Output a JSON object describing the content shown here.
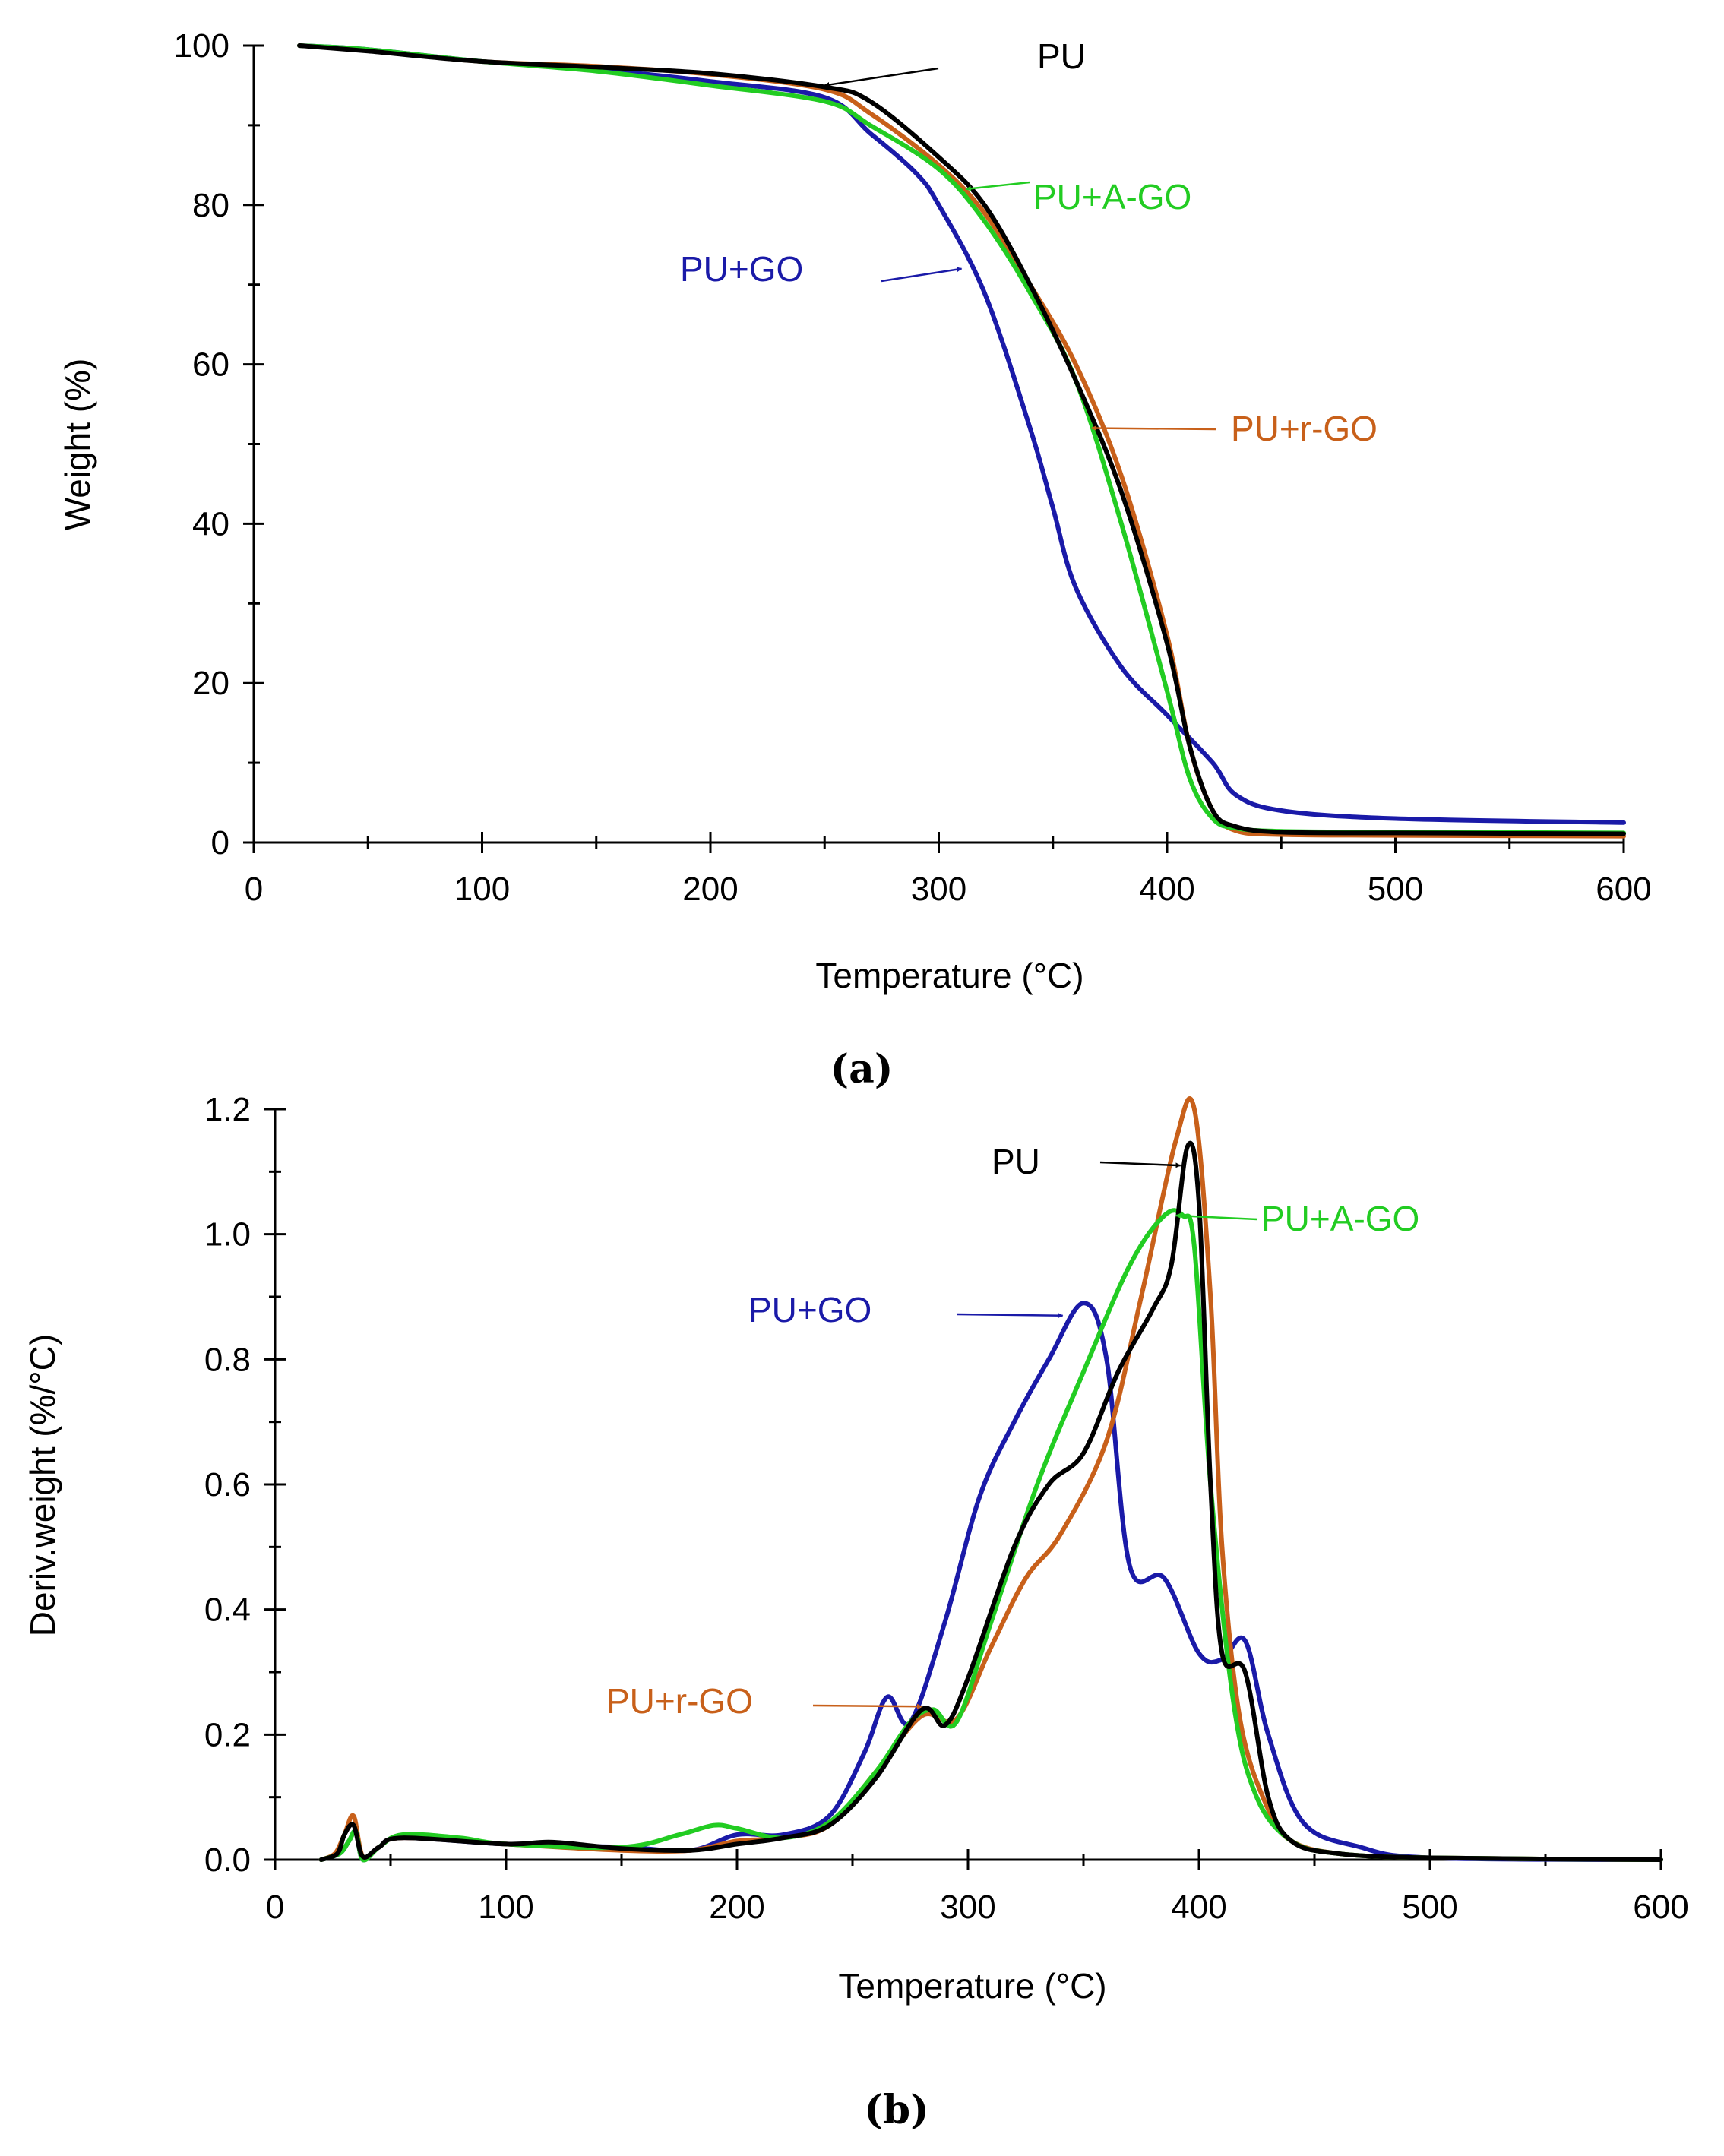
{
  "colors": {
    "PU": "#000000",
    "PU+GO": "#1a1aa8",
    "PU+A-GO": "#22cc22",
    "PU+r-GO": "#c8601a"
  },
  "chart_data": [
    {
      "id": "a",
      "type": "line",
      "panel_label": "(a)",
      "title": "",
      "xlabel": "Temperature (°C)",
      "ylabel": "Weight (%)",
      "xlim": [
        0,
        600
      ],
      "ylim": [
        0,
        100
      ],
      "x_ticks": [
        "0",
        "100",
        "200",
        "300",
        "400",
        "500",
        "600"
      ],
      "y_ticks": [
        "0",
        "20",
        "40",
        "60",
        "80",
        "100"
      ],
      "grid": false,
      "series": [
        {
          "name": "PU",
          "color_key": "PU",
          "points": [
            [
              20,
              100
            ],
            [
              50,
              99.3
            ],
            [
              100,
              98
            ],
            [
              150,
              97.3
            ],
            [
              200,
              96.5
            ],
            [
              250,
              94.8
            ],
            [
              270,
              93
            ],
            [
              300,
              86
            ],
            [
              320,
              80
            ],
            [
              340,
              70
            ],
            [
              360,
              58
            ],
            [
              380,
              44
            ],
            [
              400,
              25
            ],
            [
              410,
              12
            ],
            [
              420,
              4
            ],
            [
              430,
              2
            ],
            [
              450,
              1.3
            ],
            [
              500,
              1.2
            ],
            [
              600,
              1.1
            ]
          ]
        },
        {
          "name": "PU+GO",
          "color_key": "PU+GO",
          "points": [
            [
              20,
              100
            ],
            [
              50,
              99.5
            ],
            [
              100,
              98
            ],
            [
              150,
              97
            ],
            [
              200,
              95.5
            ],
            [
              250,
              93.5
            ],
            [
              270,
              89
            ],
            [
              290,
              84
            ],
            [
              300,
              80
            ],
            [
              320,
              69
            ],
            [
              340,
              52
            ],
            [
              350,
              42
            ],
            [
              360,
              32
            ],
            [
              380,
              22
            ],
            [
              400,
              16
            ],
            [
              420,
              10
            ],
            [
              430,
              6
            ],
            [
              450,
              4
            ],
            [
              500,
              3
            ],
            [
              600,
              2.5
            ]
          ]
        },
        {
          "name": "PU+A-GO",
          "color_key": "PU+A-GO",
          "points": [
            [
              20,
              100
            ],
            [
              50,
              99.5
            ],
            [
              100,
              98
            ],
            [
              150,
              96.8
            ],
            [
              200,
              95
            ],
            [
              250,
              93
            ],
            [
              270,
              90
            ],
            [
              300,
              84.5
            ],
            [
              320,
              78
            ],
            [
              340,
              69
            ],
            [
              360,
              58
            ],
            [
              380,
              40
            ],
            [
              400,
              19
            ],
            [
              410,
              8
            ],
            [
              420,
              3
            ],
            [
              430,
              1.8
            ],
            [
              450,
              1.4
            ],
            [
              500,
              1.3
            ],
            [
              600,
              1.2
            ]
          ]
        },
        {
          "name": "PU+r-GO",
          "color_key": "PU+r-GO",
          "points": [
            [
              20,
              100
            ],
            [
              50,
              99.4
            ],
            [
              100,
              98
            ],
            [
              150,
              97.4
            ],
            [
              200,
              96.4
            ],
            [
              250,
              94.5
            ],
            [
              270,
              91.5
            ],
            [
              300,
              85
            ],
            [
              320,
              79
            ],
            [
              340,
              70
            ],
            [
              360,
              60
            ],
            [
              380,
              46
            ],
            [
              400,
              26
            ],
            [
              410,
              12
            ],
            [
              420,
              4
            ],
            [
              430,
              1.5
            ],
            [
              450,
              1
            ],
            [
              500,
              0.9
            ],
            [
              600,
              0.8
            ]
          ]
        }
      ],
      "annotations": [
        {
          "text": "PU",
          "color_key": "PU",
          "arrow_to": [
            250,
            95
          ]
        },
        {
          "text": "PU+A-GO",
          "color_key": "PU+A-GO",
          "arrow_to": [
            312,
            82
          ]
        },
        {
          "text": "PU+GO",
          "color_key": "PU+GO",
          "arrow_to": [
            310,
            72
          ]
        },
        {
          "text": "PU+r-GO",
          "color_key": "PU+r-GO",
          "arrow_to": [
            367,
            52
          ]
        }
      ]
    },
    {
      "id": "b",
      "type": "line",
      "panel_label": "(b)",
      "title": "",
      "xlabel": "Temperature (°C)",
      "ylabel": "Deriv.weight (%/°C)",
      "xlim": [
        0,
        600
      ],
      "ylim": [
        0,
        1.2
      ],
      "x_ticks": [
        "0",
        "100",
        "200",
        "300",
        "400",
        "500",
        "600"
      ],
      "y_ticks": [
        "0.0",
        "0.2",
        "0.4",
        "0.6",
        "0.8",
        "1.0",
        "1.2"
      ],
      "grid": false,
      "series": [
        {
          "name": "PU",
          "color_key": "PU",
          "points": [
            [
              20,
              0
            ],
            [
              27,
              0.01
            ],
            [
              30,
              0.04
            ],
            [
              34,
              0.055
            ],
            [
              38,
              0.005
            ],
            [
              45,
              0.02
            ],
            [
              55,
              0.035
            ],
            [
              100,
              0.025
            ],
            [
              120,
              0.028
            ],
            [
              150,
              0.018
            ],
            [
              180,
              0.015
            ],
            [
              200,
              0.025
            ],
            [
              220,
              0.035
            ],
            [
              240,
              0.055
            ],
            [
              260,
              0.13
            ],
            [
              280,
              0.24
            ],
            [
              290,
              0.215
            ],
            [
              300,
              0.29
            ],
            [
              320,
              0.5
            ],
            [
              335,
              0.6
            ],
            [
              350,
              0.65
            ],
            [
              365,
              0.78
            ],
            [
              380,
              0.88
            ],
            [
              388,
              0.95
            ],
            [
              395,
              1.14
            ],
            [
              400,
              1.05
            ],
            [
              405,
              0.6
            ],
            [
              410,
              0.33
            ],
            [
              420,
              0.3
            ],
            [
              430,
              0.1
            ],
            [
              440,
              0.03
            ],
            [
              460,
              0.01
            ],
            [
              500,
              0.003
            ],
            [
              600,
              0
            ]
          ]
        },
        {
          "name": "PU+GO",
          "color_key": "PU+GO",
          "points": [
            [
              20,
              0
            ],
            [
              28,
              0.01
            ],
            [
              32,
              0.03
            ],
            [
              35,
              0.045
            ],
            [
              38,
              0
            ],
            [
              45,
              0.02
            ],
            [
              55,
              0.035
            ],
            [
              100,
              0.025
            ],
            [
              150,
              0.02
            ],
            [
              180,
              0.015
            ],
            [
              200,
              0.04
            ],
            [
              220,
              0.04
            ],
            [
              240,
              0.07
            ],
            [
              255,
              0.17
            ],
            [
              265,
              0.26
            ],
            [
              275,
              0.22
            ],
            [
              290,
              0.38
            ],
            [
              305,
              0.58
            ],
            [
              320,
              0.7
            ],
            [
              335,
              0.8
            ],
            [
              350,
              0.89
            ],
            [
              360,
              0.8
            ],
            [
              370,
              0.47
            ],
            [
              385,
              0.45
            ],
            [
              400,
              0.33
            ],
            [
              410,
              0.32
            ],
            [
              420,
              0.35
            ],
            [
              430,
              0.2
            ],
            [
              445,
              0.06
            ],
            [
              470,
              0.02
            ],
            [
              500,
              0.003
            ],
            [
              600,
              0
            ]
          ]
        },
        {
          "name": "PU+A-GO",
          "color_key": "PU+A-GO",
          "points": [
            [
              20,
              0
            ],
            [
              28,
              0.01
            ],
            [
              32,
              0.03
            ],
            [
              35,
              0.045
            ],
            [
              38,
              0
            ],
            [
              45,
              0.02
            ],
            [
              55,
              0.04
            ],
            [
              80,
              0.035
            ],
            [
              100,
              0.025
            ],
            [
              150,
              0.02
            ],
            [
              175,
              0.04
            ],
            [
              190,
              0.055
            ],
            [
              200,
              0.05
            ],
            [
              220,
              0.035
            ],
            [
              240,
              0.06
            ],
            [
              260,
              0.14
            ],
            [
              275,
              0.22
            ],
            [
              285,
              0.24
            ],
            [
              295,
              0.22
            ],
            [
              310,
              0.38
            ],
            [
              330,
              0.6
            ],
            [
              350,
              0.78
            ],
            [
              370,
              0.95
            ],
            [
              385,
              1.03
            ],
            [
              393,
              1.03
            ],
            [
              398,
              0.98
            ],
            [
              405,
              0.6
            ],
            [
              415,
              0.25
            ],
            [
              425,
              0.1
            ],
            [
              440,
              0.03
            ],
            [
              460,
              0.01
            ],
            [
              500,
              0.003
            ],
            [
              600,
              0
            ]
          ]
        },
        {
          "name": "PU+r-GO",
          "color_key": "PU+r-GO",
          "points": [
            [
              20,
              0
            ],
            [
              26,
              0.01
            ],
            [
              30,
              0.04
            ],
            [
              34,
              0.07
            ],
            [
              38,
              0.005
            ],
            [
              45,
              0.02
            ],
            [
              55,
              0.035
            ],
            [
              100,
              0.025
            ],
            [
              150,
              0.015
            ],
            [
              180,
              0.015
            ],
            [
              200,
              0.03
            ],
            [
              220,
              0.035
            ],
            [
              240,
              0.055
            ],
            [
              260,
              0.14
            ],
            [
              280,
              0.23
            ],
            [
              295,
              0.225
            ],
            [
              310,
              0.34
            ],
            [
              325,
              0.45
            ],
            [
              340,
              0.52
            ],
            [
              360,
              0.67
            ],
            [
              375,
              0.9
            ],
            [
              390,
              1.15
            ],
            [
              398,
              1.2
            ],
            [
              405,
              0.9
            ],
            [
              410,
              0.5
            ],
            [
              418,
              0.22
            ],
            [
              430,
              0.08
            ],
            [
              440,
              0.03
            ],
            [
              460,
              0.01
            ],
            [
              500,
              0.003
            ],
            [
              600,
              0
            ]
          ]
        }
      ],
      "annotations": [
        {
          "text": "PU",
          "color_key": "PU",
          "arrow_to": [
            392,
            1.11
          ]
        },
        {
          "text": "PU+A-GO",
          "color_key": "PU+A-GO",
          "arrow_to": [
            390,
            1.03
          ]
        },
        {
          "text": "PU+GO",
          "color_key": "PU+GO",
          "arrow_to": [
            341,
            0.87
          ]
        },
        {
          "text": "PU+r-GO",
          "color_key": "PU+r-GO",
          "arrow_to": [
            280,
            0.245
          ]
        }
      ]
    }
  ]
}
